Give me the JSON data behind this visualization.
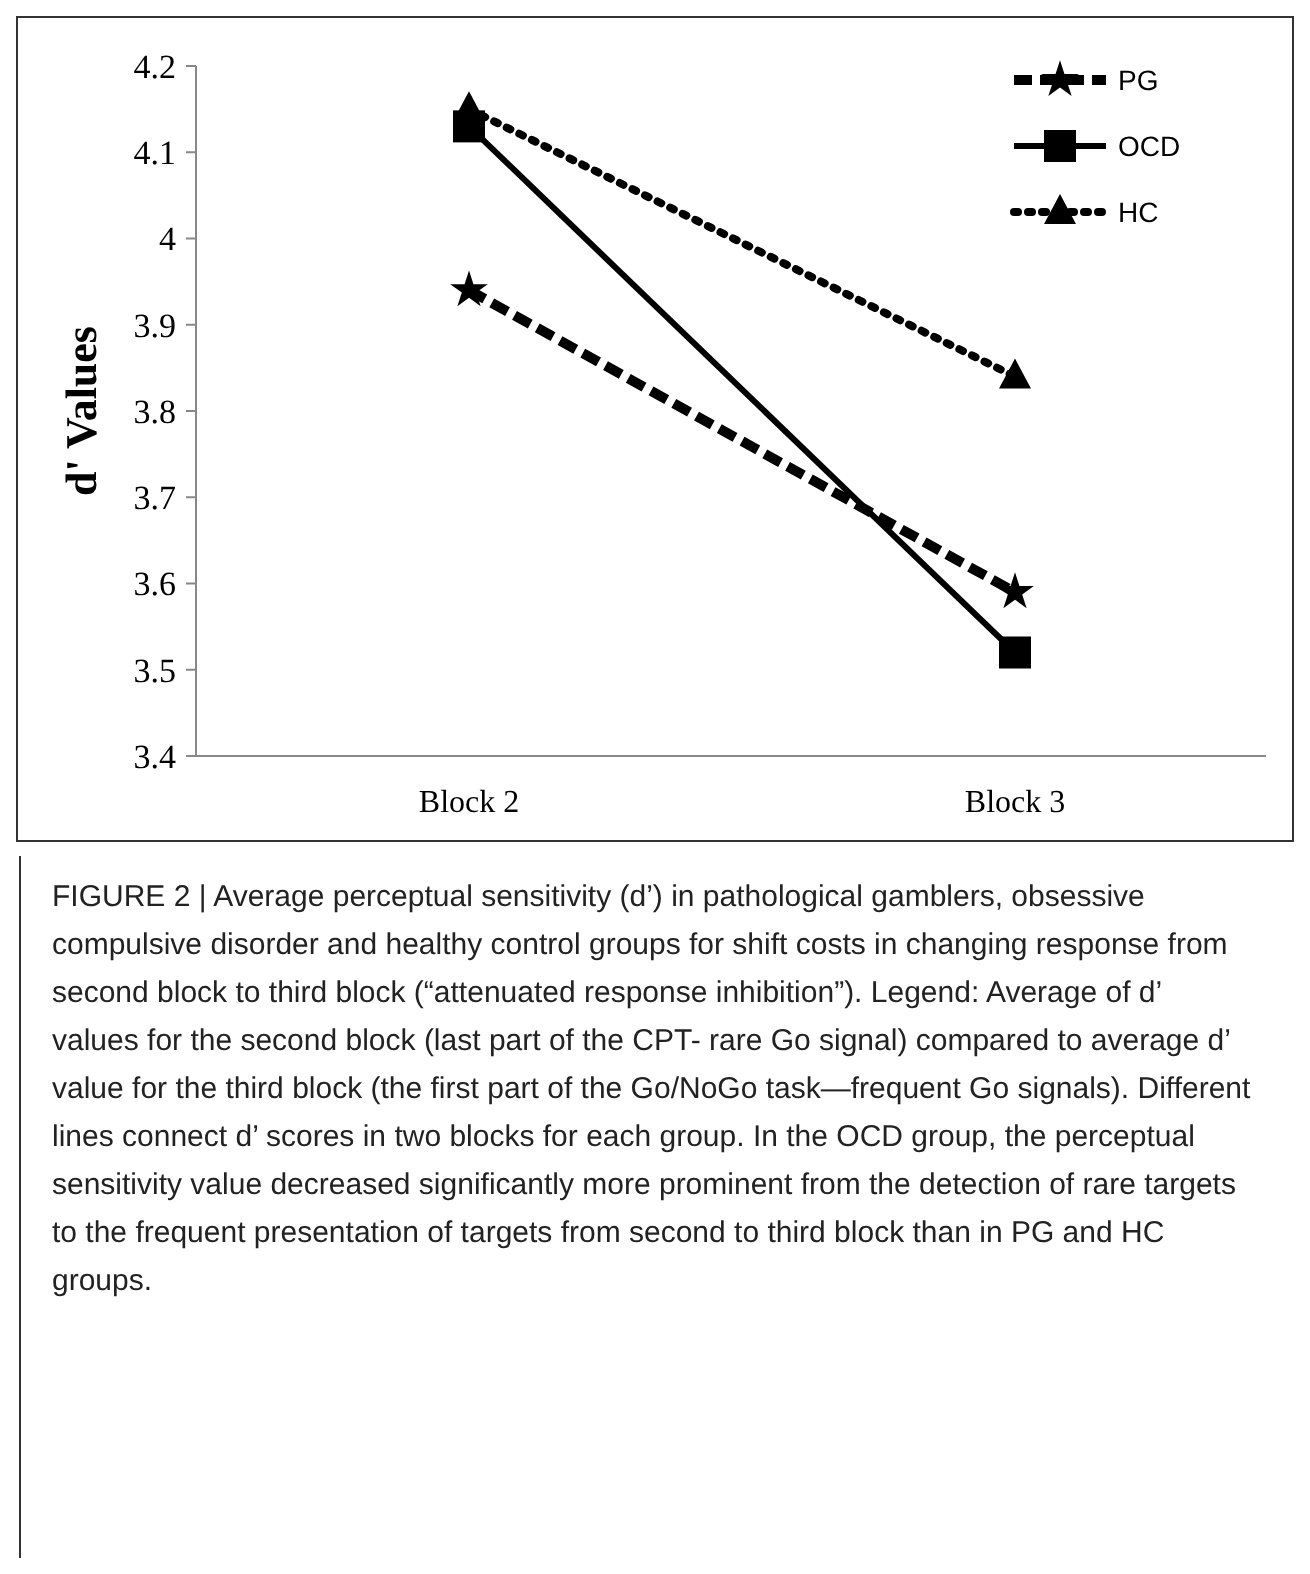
{
  "chart_data": {
    "type": "line",
    "ylabel": "d' Values",
    "categories": [
      "Block 2",
      "Block 3"
    ],
    "series": [
      {
        "name": "PG",
        "color": "#000000",
        "values": [
          3.94,
          3.59
        ],
        "marker": "star",
        "line_style": "dashed"
      },
      {
        "name": "OCD",
        "color": "#000000",
        "values": [
          4.13,
          3.52
        ],
        "marker": "square",
        "line_style": "solid"
      },
      {
        "name": "HC",
        "color": "#000000",
        "values": [
          4.15,
          3.84
        ],
        "marker": "triangle",
        "line_style": "dotted"
      }
    ],
    "ylim": [
      3.4,
      4.2
    ],
    "yticks": [
      3.4,
      3.5,
      3.6,
      3.7,
      3.8,
      3.9,
      4,
      4.1,
      4.2
    ],
    "grid": false,
    "legend": "top right",
    "annotations": [
      "FIGURE 2 | Average perceptual sensitivity (d’) in pathological gamblers, obsessive compulsive disorder and healthy control groups for shift costs in changing response from second block to third block (“attenuated response inhibition”). Legend: Average of d’ values for the second block (last part of the CPT- rare Go signal) compared to average d’ value for the third block (the first part of the Go/NoGo task—frequent Go signals). Different lines connect d’ scores in two blocks for each group. In the OCD group, the perceptual sensitivity value decreased significantly more prominent from the detection of rare targets to the frequent presentation of targets from second to third block than in PG and HC groups."
    ]
  }
}
